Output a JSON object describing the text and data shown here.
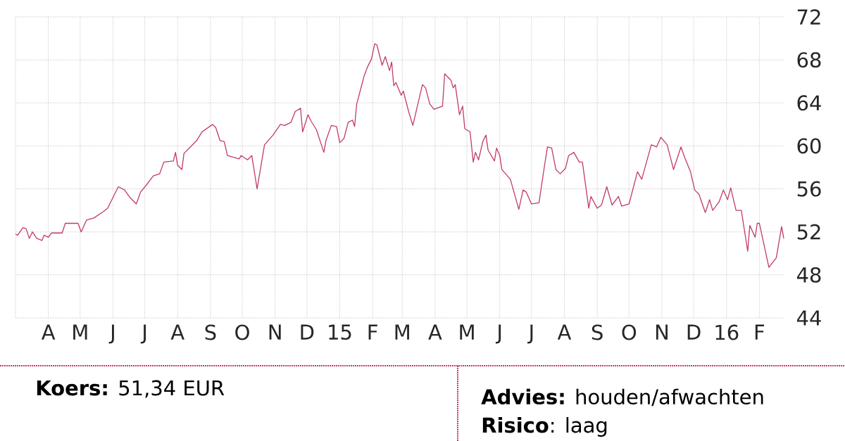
{
  "chart_data": {
    "type": "line",
    "color": "#c23a6e",
    "grid": true,
    "xlim": [
      "2014-03-01",
      "2016-02-24"
    ],
    "ylim": [
      44,
      72
    ],
    "yticks": [
      44,
      48,
      52,
      56,
      60,
      64,
      68,
      72
    ],
    "xticks": [
      {
        "value": "2014-03-01",
        "label": null
      },
      {
        "value": "2014-04-01",
        "label": "A"
      },
      {
        "value": "2014-05-01",
        "label": "M"
      },
      {
        "value": "2014-06-01",
        "label": "J"
      },
      {
        "value": "2014-07-01",
        "label": "J"
      },
      {
        "value": "2014-08-01",
        "label": "A"
      },
      {
        "value": "2014-09-01",
        "label": "S"
      },
      {
        "value": "2014-10-01",
        "label": "O"
      },
      {
        "value": "2014-11-01",
        "label": "N"
      },
      {
        "value": "2014-12-01",
        "label": "D"
      },
      {
        "value": "2015-01-01",
        "label": "15"
      },
      {
        "value": "2015-02-01",
        "label": "F"
      },
      {
        "value": "2015-03-01",
        "label": "M"
      },
      {
        "value": "2015-04-01",
        "label": "A"
      },
      {
        "value": "2015-05-01",
        "label": "M"
      },
      {
        "value": "2015-06-01",
        "label": "J"
      },
      {
        "value": "2015-07-01",
        "label": "J"
      },
      {
        "value": "2015-08-01",
        "label": "A"
      },
      {
        "value": "2015-09-01",
        "label": "S"
      },
      {
        "value": "2015-10-01",
        "label": "O"
      },
      {
        "value": "2015-11-01",
        "label": "N"
      },
      {
        "value": "2015-12-01",
        "label": "D"
      },
      {
        "value": "2016-01-01",
        "label": "16"
      },
      {
        "value": "2016-02-01",
        "label": "F"
      }
    ],
    "x": [
      "2014-03-01",
      "2014-03-03",
      "2014-03-08",
      "2014-03-11",
      "2014-03-14",
      "2014-03-17",
      "2014-03-21",
      "2014-03-26",
      "2014-03-28",
      "2014-04-01",
      "2014-04-04",
      "2014-04-14",
      "2014-04-17",
      "2014-04-29",
      "2014-05-02",
      "2014-05-07",
      "2014-05-14",
      "2014-05-23",
      "2014-05-27",
      "2014-06-06",
      "2014-06-12",
      "2014-06-17",
      "2014-06-23",
      "2014-06-27",
      "2014-07-02",
      "2014-07-09",
      "2014-07-15",
      "2014-07-19",
      "2014-07-28",
      "2014-07-30",
      "2014-08-01",
      "2014-08-05",
      "2014-08-07",
      "2014-08-13",
      "2014-08-19",
      "2014-08-24",
      "2014-09-03",
      "2014-09-06",
      "2014-09-10",
      "2014-09-14",
      "2014-09-17",
      "2014-09-28",
      "2014-09-30",
      "2014-10-06",
      "2014-10-10",
      "2014-10-15",
      "2014-10-22",
      "2014-10-30",
      "2014-11-06",
      "2014-11-10",
      "2014-11-16",
      "2014-11-20",
      "2014-11-25",
      "2014-11-27",
      "2014-12-02",
      "2014-12-05",
      "2014-12-10",
      "2014-12-17",
      "2014-12-19",
      "2014-12-24",
      "2014-12-29",
      "2015-01-01",
      "2015-01-05",
      "2015-01-09",
      "2015-01-13",
      "2015-01-15",
      "2015-01-17",
      "2015-01-24",
      "2015-01-27",
      "2015-01-31",
      "2015-02-03",
      "2015-02-05",
      "2015-02-10",
      "2015-02-13",
      "2015-02-17",
      "2015-02-19",
      "2015-02-21",
      "2015-02-23",
      "2015-02-28",
      "2015-03-02",
      "2015-03-07",
      "2015-03-11",
      "2015-03-20",
      "2015-03-23",
      "2015-03-27",
      "2015-03-31",
      "2015-04-08",
      "2015-04-10",
      "2015-04-16",
      "2015-04-18",
      "2015-04-20",
      "2015-04-24",
      "2015-04-27",
      "2015-04-29",
      "2015-05-04",
      "2015-05-07",
      "2015-05-09",
      "2015-05-12",
      "2015-05-16",
      "2015-05-19",
      "2015-05-21",
      "2015-05-27",
      "2015-05-29",
      "2015-06-01",
      "2015-06-03",
      "2015-06-11",
      "2015-06-19",
      "2015-06-23",
      "2015-06-26",
      "2015-07-01",
      "2015-07-08",
      "2015-07-13",
      "2015-07-16",
      "2015-07-20",
      "2015-07-24",
      "2015-07-28",
      "2015-08-02",
      "2015-08-05",
      "2015-08-10",
      "2015-08-15",
      "2015-08-18",
      "2015-08-24",
      "2015-08-26",
      "2015-09-01",
      "2015-09-05",
      "2015-09-10",
      "2015-09-15",
      "2015-09-21",
      "2015-09-24",
      "2015-10-01",
      "2015-10-09",
      "2015-10-13",
      "2015-10-22",
      "2015-10-27",
      "2015-10-31",
      "2015-11-06",
      "2015-11-12",
      "2015-11-19",
      "2015-11-23",
      "2015-11-28",
      "2015-12-02",
      "2015-12-06",
      "2015-12-12",
      "2015-12-16",
      "2015-12-19",
      "2015-12-25",
      "2015-12-29",
      "2016-01-02",
      "2016-01-05",
      "2016-01-10",
      "2016-01-15",
      "2016-01-21",
      "2016-01-23",
      "2016-01-28",
      "2016-01-30",
      "2016-02-01",
      "2016-02-10",
      "2016-02-17",
      "2016-02-22",
      "2016-02-24"
    ],
    "values": [
      51.8,
      51.7,
      52.4,
      52.3,
      51.4,
      52.0,
      51.4,
      51.2,
      51.7,
      51.5,
      51.9,
      51.9,
      52.8,
      52.8,
      52.0,
      53.1,
      53.3,
      53.9,
      54.2,
      56.2,
      55.9,
      55.2,
      54.6,
      55.7,
      56.3,
      57.2,
      57.4,
      58.5,
      58.6,
      59.4,
      58.2,
      57.8,
      59.3,
      59.9,
      60.5,
      61.3,
      62.0,
      61.7,
      60.5,
      60.4,
      59.1,
      58.8,
      59.1,
      58.7,
      59.1,
      56.0,
      60.1,
      61.0,
      62.0,
      61.9,
      62.2,
      63.2,
      63.5,
      61.3,
      62.9,
      62.3,
      61.5,
      59.4,
      60.5,
      61.9,
      61.8,
      60.3,
      60.7,
      62.2,
      62.4,
      61.8,
      63.9,
      66.5,
      67.3,
      68.1,
      69.5,
      69.4,
      67.5,
      68.3,
      67.0,
      67.8,
      65.6,
      65.9,
      64.7,
      65.1,
      63.2,
      61.9,
      65.7,
      65.4,
      63.9,
      63.4,
      63.7,
      66.7,
      66.1,
      65.4,
      65.7,
      62.9,
      63.7,
      61.6,
      61.3,
      58.5,
      59.4,
      58.7,
      60.4,
      61.0,
      59.6,
      58.6,
      59.8,
      59.1,
      57.8,
      56.9,
      54.1,
      55.9,
      55.7,
      54.6,
      54.7,
      58.0,
      59.9,
      59.8,
      57.8,
      57.4,
      57.9,
      59.1,
      59.4,
      58.5,
      58.5,
      54.2,
      55.3,
      54.2,
      54.5,
      56.2,
      54.5,
      55.3,
      54.4,
      54.6,
      57.6,
      56.9,
      60.1,
      59.9,
      60.8,
      60.1,
      57.8,
      59.9,
      58.8,
      57.6,
      55.9,
      55.5,
      53.8,
      55.0,
      54.0,
      54.8,
      55.9,
      55.0,
      56.1,
      54.0,
      54.0,
      50.2,
      52.6,
      51.5,
      52.8,
      52.8,
      48.7,
      49.6,
      52.5,
      51.4
    ],
    "annotations": [
      "**Koers:** 51,34 EUR",
      "**Advies:** houden/afwachten",
      "**Risico**: laag"
    ]
  }
}
